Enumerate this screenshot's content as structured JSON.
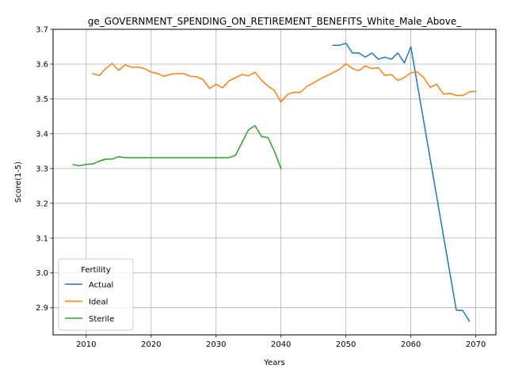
{
  "chart_data": {
    "type": "line",
    "title": "ge_GOVERNMENT_SPENDING_ON_RETIREMENT_BENEFITS_White_Male_Above_",
    "xlabel": "Years",
    "ylabel": "Score(1-5)",
    "xlim": [
      2004.9,
      2073.1
    ],
    "ylim": [
      2.822,
      3.7
    ],
    "xticks": [
      2010,
      2020,
      2030,
      2040,
      2050,
      2060,
      2070
    ],
    "xtick_labels": [
      "2010",
      "2020",
      "2030",
      "2040",
      "2050",
      "2060",
      "2070"
    ],
    "yticks": [
      2.9,
      3.0,
      3.1,
      3.2,
      3.3,
      3.4,
      3.5,
      3.6,
      3.7
    ],
    "ytick_labels": [
      "2.9",
      "3.0",
      "3.1",
      "3.2",
      "3.3",
      "3.4",
      "3.5",
      "3.6",
      "3.7"
    ],
    "grid": true,
    "legend": {
      "title": "Fertility",
      "position": "lower-left"
    },
    "series": [
      {
        "name": "Actual",
        "color": "#1f77b4",
        "x": [
          2048,
          2049,
          2050,
          2051,
          2052,
          2053,
          2054,
          2055,
          2056,
          2057,
          2058,
          2059,
          2060,
          2067,
          2068,
          2069
        ],
        "y": [
          3.654,
          3.654,
          3.66,
          3.632,
          3.632,
          3.62,
          3.632,
          3.614,
          3.62,
          3.614,
          3.632,
          3.603,
          3.65,
          2.893,
          2.892,
          2.862
        ]
      },
      {
        "name": "Ideal",
        "color": "#ff7f0e",
        "x": [
          2011,
          2012,
          2013,
          2014,
          2015,
          2016,
          2017,
          2018,
          2019,
          2020,
          2021,
          2022,
          2023,
          2024,
          2025,
          2026,
          2027,
          2028,
          2029,
          2030,
          2031,
          2032,
          2033,
          2034,
          2035,
          2036,
          2037,
          2038,
          2039,
          2040,
          2041,
          2042,
          2043,
          2044,
          2045,
          2046,
          2047,
          2048,
          2049,
          2050,
          2051,
          2052,
          2053,
          2054,
          2055,
          2056,
          2057,
          2058,
          2059,
          2060,
          2061,
          2062,
          2063,
          2064,
          2065,
          2066,
          2067,
          2068,
          2069,
          2070
        ],
        "y": [
          3.573,
          3.567,
          3.587,
          3.602,
          3.582,
          3.598,
          3.591,
          3.591,
          3.587,
          3.577,
          3.573,
          3.565,
          3.571,
          3.573,
          3.573,
          3.565,
          3.564,
          3.555,
          3.53,
          3.542,
          3.532,
          3.552,
          3.561,
          3.57,
          3.566,
          3.577,
          3.554,
          3.537,
          3.524,
          3.491,
          3.513,
          3.519,
          3.519,
          3.536,
          3.546,
          3.557,
          3.566,
          3.575,
          3.585,
          3.601,
          3.587,
          3.581,
          3.595,
          3.587,
          3.59,
          3.567,
          3.57,
          3.553,
          3.561,
          3.575,
          3.577,
          3.561,
          3.533,
          3.542,
          3.514,
          3.516,
          3.51,
          3.51,
          3.52,
          3.522
        ]
      },
      {
        "name": "Sterile",
        "color": "#2ca02c",
        "x": [
          2008,
          2009,
          2010,
          2011,
          2012,
          2013,
          2014,
          2015,
          2016,
          2017,
          2018,
          2019,
          2020,
          2021,
          2022,
          2023,
          2024,
          2025,
          2026,
          2027,
          2028,
          2029,
          2030,
          2031,
          2032,
          2033,
          2034,
          2035,
          2036,
          2037,
          2038,
          2039,
          2040
        ],
        "y": [
          3.311,
          3.308,
          3.312,
          3.313,
          3.321,
          3.327,
          3.327,
          3.334,
          3.331,
          3.331,
          3.331,
          3.331,
          3.331,
          3.331,
          3.331,
          3.331,
          3.331,
          3.331,
          3.331,
          3.331,
          3.331,
          3.331,
          3.331,
          3.331,
          3.331,
          3.338,
          3.375,
          3.411,
          3.423,
          3.392,
          3.389,
          3.349,
          3.3
        ]
      }
    ]
  }
}
